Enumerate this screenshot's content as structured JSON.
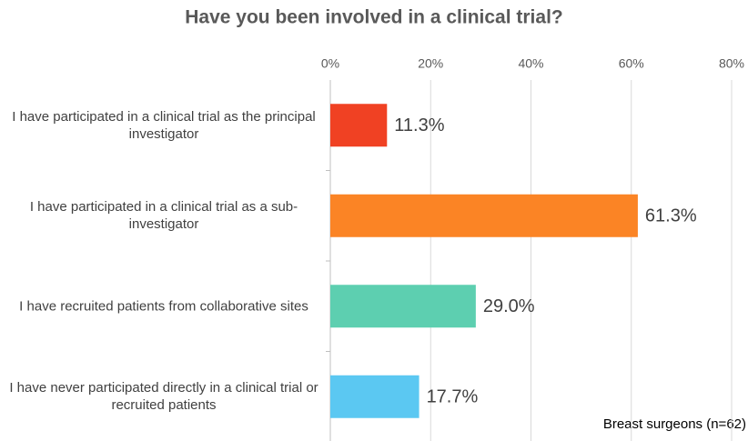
{
  "chart_data": {
    "type": "bar",
    "orientation": "horizontal",
    "title": "Have you been involved in a clinical trial?",
    "categories": [
      "I have participated in a clinical trial as the principal investigator",
      "I have participated in a clinical trial as a sub-investigator",
      "I have recruited patients from collaborative sites",
      "I have never participated directly in a clinical trial or recruited patients"
    ],
    "values": [
      11.3,
      61.3,
      29.0,
      17.7
    ],
    "value_labels": [
      "11.3%",
      "61.3%",
      "29.0%",
      "17.7%"
    ],
    "colors": [
      "#f04123",
      "#fb8425",
      "#5dcfb0",
      "#5bc8f2"
    ],
    "xlim": [
      0,
      80
    ],
    "xticks": [
      {
        "value": 0,
        "label": "0%"
      },
      {
        "value": 20,
        "label": "20%"
      },
      {
        "value": 40,
        "label": "40%"
      },
      {
        "value": 60,
        "label": "60%"
      },
      {
        "value": 80,
        "label": "80%"
      }
    ],
    "grid": true,
    "annotation": "Breast surgeons (n=62)"
  }
}
